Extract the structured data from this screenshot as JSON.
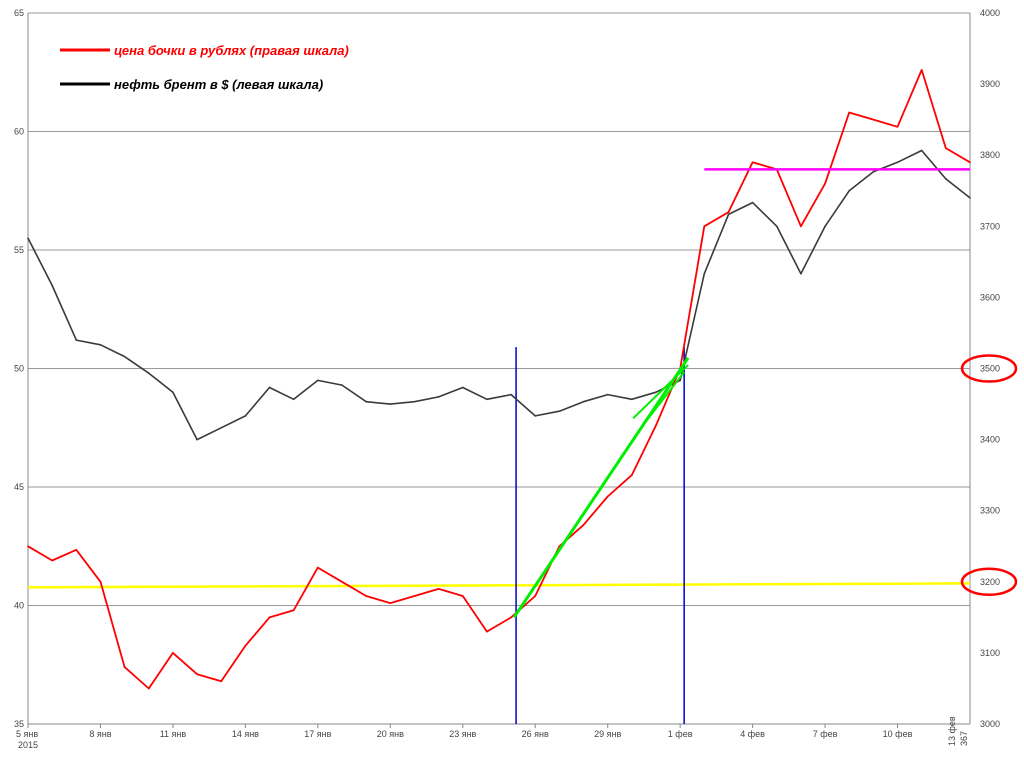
{
  "chart_data": {
    "type": "line",
    "legend": [
      {
        "label": "цена бочки в рублях (правая шкала)",
        "color": "#ff0000"
      },
      {
        "label": "нефть брент в $ (левая шкала)",
        "color": "#000000"
      }
    ],
    "legend_position": "top-left",
    "grid": true,
    "left_axis": {
      "min": 35,
      "max": 65,
      "ticks": [
        "35",
        "40",
        "45",
        "50",
        "55",
        "60",
        "65"
      ]
    },
    "right_axis": {
      "min": 3000,
      "max": 4000,
      "ticks": [
        "3000",
        "3100",
        "3200",
        "3300",
        "3400",
        "3500",
        "3600",
        "3700",
        "3800",
        "3900",
        "4000"
      ]
    },
    "x_axis": {
      "ticks": [
        "5 янв",
        "8 янв",
        "11 янв",
        "14 янв",
        "17 янв",
        "20 янв",
        "23 янв",
        "26 янв",
        "29 янв",
        "1 фев",
        "4 фев",
        "7 фев",
        "10 фев"
      ],
      "year_label": "2015",
      "end_labels": [
        "13 фев",
        "367"
      ]
    },
    "series": [
      {
        "name": "нефть брент в $ (левая шкала)",
        "axis": "left",
        "color": "#3a3a3a",
        "x": [
          "5 янв",
          "6 янв",
          "7 янв",
          "8 янв",
          "9 янв",
          "10 янв",
          "11 янв",
          "12 янв",
          "13 янв",
          "14 янв",
          "15 янв",
          "16 янв",
          "17 янв",
          "18 янв",
          "19 янв",
          "20 янв",
          "21 янв",
          "22 янв",
          "23 янв",
          "24 янв",
          "25 янв",
          "26 янв",
          "27 янв",
          "28 янв",
          "29 янв",
          "30 янв",
          "31 янв",
          "1 фев",
          "2 фев",
          "3 фев",
          "4 фев",
          "5 фев",
          "6 фев",
          "7 фев",
          "8 фев",
          "9 фев",
          "10 фев",
          "11 фев",
          "12 фев",
          "13 фев"
        ],
        "y": [
          55.5,
          53.5,
          51.2,
          51.0,
          50.5,
          49.8,
          49.0,
          47.0,
          47.5,
          48.0,
          49.2,
          48.7,
          49.5,
          49.3,
          48.6,
          48.5,
          48.6,
          48.8,
          49.2,
          48.7,
          48.9,
          48.0,
          48.2,
          48.6,
          48.9,
          48.7,
          49.0,
          49.5,
          54.0,
          56.5,
          57.0,
          56.0,
          54.0,
          56.0,
          57.5,
          58.3,
          58.7,
          59.2,
          58.0,
          57.2
        ]
      },
      {
        "name": "цена бочки в рублях (правая шкала)",
        "axis": "right",
        "color": "#ff0000",
        "x": [
          "5 янв",
          "6 янв",
          "7 янв",
          "8 янв",
          "9 янв",
          "10 янв",
          "11 янв",
          "12 янв",
          "13 янв",
          "14 янв",
          "15 янв",
          "16 янв",
          "17 янв",
          "18 янв",
          "19 янв",
          "20 янв",
          "21 янв",
          "22 янв",
          "23 янв",
          "24 янв",
          "25 янв",
          "26 янв",
          "27 янв",
          "28 янв",
          "29 янв",
          "30 янв",
          "31 янв",
          "1 фев",
          "2 фев",
          "3 фев",
          "4 фев",
          "5 фев",
          "6 фев",
          "7 фев",
          "8 фев",
          "9 фев",
          "10 фев",
          "11 фев",
          "12 фев",
          "13 фев"
        ],
        "y": [
          3250,
          3230,
          3245,
          3200,
          3080,
          3050,
          3100,
          3070,
          3060,
          3110,
          3150,
          3160,
          3220,
          3200,
          3180,
          3170,
          3180,
          3190,
          3180,
          3130,
          3150,
          3180,
          3250,
          3280,
          3320,
          3350,
          3420,
          3500,
          3700,
          3720,
          3790,
          3780,
          3700,
          3760,
          3860,
          3850,
          3840,
          3920,
          3810,
          3790
        ]
      }
    ],
    "annotations": [
      {
        "kind": "hline",
        "axis": "right",
        "y": 3195,
        "color": "#ffff00"
      },
      {
        "kind": "hline",
        "axis": "right",
        "y": 3780,
        "color": "#ff00ff"
      },
      {
        "kind": "vline",
        "x": "25 янв",
        "color": "#0000cc"
      },
      {
        "kind": "vline",
        "x": "1 фев",
        "color": "#0000cc"
      },
      {
        "kind": "trend",
        "color": "#00ee00"
      },
      {
        "kind": "ellipse",
        "axis": "right",
        "y": 3500,
        "color": "#ff0000"
      },
      {
        "kind": "ellipse",
        "axis": "right",
        "y": 3200,
        "color": "#ff0000"
      }
    ]
  }
}
